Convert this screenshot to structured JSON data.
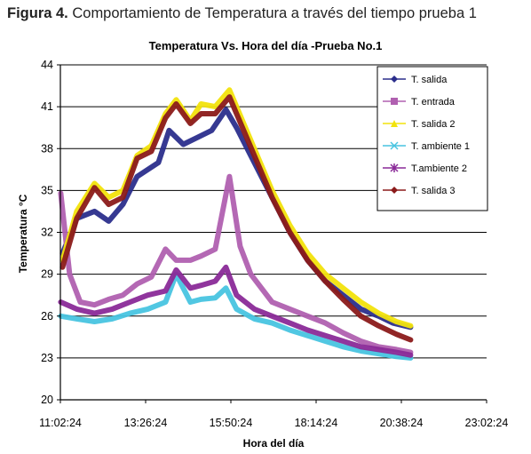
{
  "caption": {
    "label": "Figura 4.",
    "text": " Comportamiento de Temperatura a través del tiempo prueba 1"
  },
  "chart_data": {
    "type": "line",
    "title": "Temperatura Vs. Hora del día -Prueba  No.1",
    "xlabel": "Hora del día",
    "ylabel": "Temperatura °C",
    "ylim": [
      20,
      44
    ],
    "yticks": [
      20,
      23,
      26,
      29,
      32,
      35,
      38,
      41,
      44
    ],
    "xticks": [
      "11:02:24",
      "13:26:24",
      "15:50:24",
      "18:14:24",
      "20:38:24",
      "23:02:24"
    ],
    "xlim_hours": [
      11.04,
      23.04
    ],
    "grid": "horizontal",
    "legend_position": "top-right",
    "series": [
      {
        "name": "T. salida",
        "color": "#2b2e8c",
        "marker": "diamond",
        "x": [
          11.1,
          11.5,
          12.0,
          12.4,
          12.8,
          13.2,
          13.8,
          14.1,
          14.5,
          14.9,
          15.3,
          15.7,
          16.0,
          16.5,
          17.0,
          17.5,
          18.0,
          18.5,
          19.0,
          19.5,
          20.0,
          20.4,
          20.9
        ],
        "values": [
          30.5,
          33.0,
          33.5,
          32.8,
          34.0,
          36.0,
          37.0,
          39.3,
          38.3,
          38.8,
          39.3,
          40.8,
          39.5,
          37.0,
          34.5,
          32.0,
          30.0,
          28.5,
          27.5,
          26.5,
          26.0,
          25.5,
          25.2
        ]
      },
      {
        "name": "T. entrada",
        "color": "#b060b0",
        "marker": "square",
        "x": [
          11.05,
          11.3,
          11.6,
          12.0,
          12.4,
          12.8,
          13.2,
          13.6,
          14.0,
          14.3,
          14.7,
          15.0,
          15.4,
          15.8,
          16.1,
          16.4,
          17.0,
          17.5,
          18.0,
          18.5,
          19.0,
          19.5,
          20.0,
          20.5,
          20.9
        ],
        "values": [
          34.8,
          29.0,
          27.0,
          26.8,
          27.2,
          27.5,
          28.3,
          28.8,
          30.8,
          30.0,
          30.0,
          30.3,
          30.8,
          36.0,
          31.0,
          29.0,
          27.0,
          26.5,
          26.0,
          25.5,
          24.8,
          24.2,
          23.8,
          23.6,
          23.4
        ]
      },
      {
        "name": "T. salida 2",
        "color": "#f2e30c",
        "marker": "triangle",
        "x": [
          11.1,
          11.5,
          12.0,
          12.4,
          12.8,
          13.2,
          13.6,
          14.0,
          14.3,
          14.7,
          15.0,
          15.4,
          15.8,
          16.0,
          16.5,
          17.0,
          17.5,
          18.0,
          18.5,
          19.0,
          19.5,
          20.0,
          20.5,
          20.9
        ],
        "values": [
          30.0,
          33.5,
          35.5,
          34.5,
          35.0,
          37.5,
          38.2,
          40.5,
          41.5,
          40.0,
          41.2,
          41.0,
          42.2,
          41.0,
          38.0,
          35.0,
          32.5,
          30.5,
          29.0,
          28.0,
          27.0,
          26.2,
          25.6,
          25.3
        ]
      },
      {
        "name": "T. ambiente 1",
        "color": "#48c4e0",
        "marker": "x",
        "x": [
          11.05,
          11.5,
          12.0,
          12.5,
          13.0,
          13.5,
          14.0,
          14.3,
          14.7,
          15.0,
          15.4,
          15.7,
          16.0,
          16.5,
          17.0,
          17.5,
          18.0,
          18.5,
          19.0,
          19.5,
          20.0,
          20.5,
          20.9
        ],
        "values": [
          26.0,
          25.8,
          25.6,
          25.8,
          26.2,
          26.5,
          27.0,
          29.0,
          27.0,
          27.2,
          27.3,
          28.0,
          26.5,
          25.8,
          25.5,
          25.0,
          24.6,
          24.2,
          23.8,
          23.5,
          23.3,
          23.1,
          23.0
        ]
      },
      {
        "name": "T.ambiente 2",
        "color": "#8a2a98",
        "marker": "star",
        "x": [
          11.05,
          11.5,
          12.0,
          12.5,
          13.0,
          13.5,
          14.0,
          14.3,
          14.7,
          15.0,
          15.4,
          15.7,
          16.0,
          16.5,
          17.0,
          17.5,
          18.0,
          18.5,
          19.0,
          19.5,
          20.0,
          20.5,
          20.9
        ],
        "values": [
          27.0,
          26.5,
          26.2,
          26.5,
          27.0,
          27.5,
          27.8,
          29.3,
          28.0,
          28.2,
          28.5,
          29.5,
          27.5,
          26.5,
          26.0,
          25.5,
          25.0,
          24.6,
          24.2,
          23.8,
          23.6,
          23.4,
          23.2
        ]
      },
      {
        "name": "T. salida 3",
        "color": "#8b1a1a",
        "marker": "diamond",
        "x": [
          11.1,
          11.5,
          12.0,
          12.4,
          12.8,
          13.2,
          13.6,
          14.0,
          14.3,
          14.7,
          15.0,
          15.4,
          15.8,
          16.0,
          16.5,
          17.0,
          17.5,
          18.0,
          18.5,
          19.0,
          19.5,
          20.0,
          20.5,
          20.9
        ],
        "values": [
          29.5,
          33.0,
          35.2,
          34.0,
          34.5,
          37.3,
          37.8,
          40.2,
          41.2,
          39.8,
          40.5,
          40.5,
          41.7,
          40.5,
          37.5,
          34.5,
          32.0,
          30.0,
          28.5,
          27.2,
          26.0,
          25.3,
          24.7,
          24.3
        ]
      }
    ]
  }
}
